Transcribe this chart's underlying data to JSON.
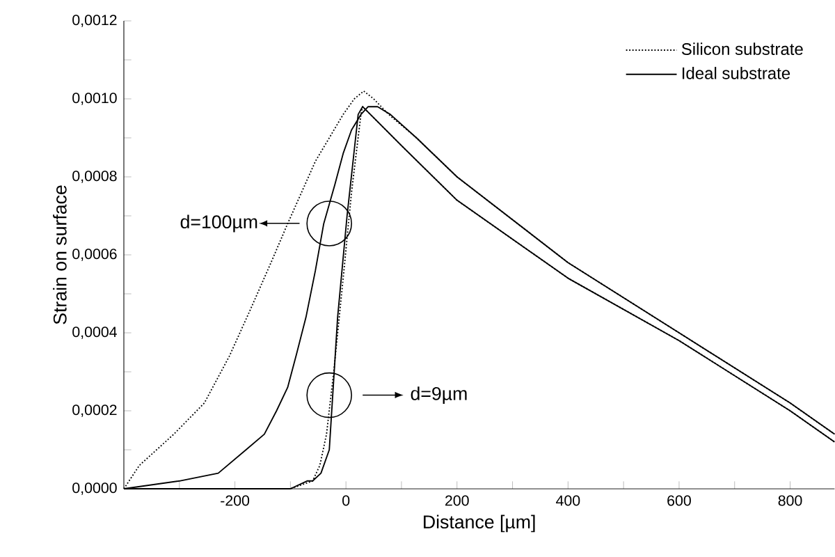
{
  "chart_data": {
    "type": "line",
    "xlabel": "Distance [µm]",
    "ylabel": "Strain on surface",
    "xlim": [
      -400,
      880
    ],
    "ylim": [
      0,
      0.0012
    ],
    "xticks": [
      {
        "value": -300,
        "label": null
      },
      -200,
      {
        "value": -100,
        "label": null
      },
      0,
      {
        "value": 100,
        "label": null
      },
      200,
      {
        "value": 300,
        "label": null
      },
      400,
      {
        "value": 500,
        "label": null
      },
      600,
      {
        "value": 700,
        "label": null
      },
      800
    ],
    "yticks": [
      {
        "value": 0,
        "label": "0,0000"
      },
      {
        "value": 0.0001,
        "label": null
      },
      {
        "value": 0.0002,
        "label": "0,0002"
      },
      {
        "value": 0.0003,
        "label": null
      },
      {
        "value": 0.0004,
        "label": "0,0004"
      },
      {
        "value": 0.0005,
        "label": null
      },
      {
        "value": 0.0006,
        "label": "0,0006"
      },
      {
        "value": 0.0007,
        "label": null
      },
      {
        "value": 0.0008,
        "label": "0,0008"
      },
      {
        "value": 0.0009,
        "label": null
      },
      {
        "value": 0.001,
        "label": "0,0010"
      },
      {
        "value": 0.0011,
        "label": null
      },
      {
        "value": 0.0012,
        "label": "0,0012"
      }
    ],
    "legend": "top right",
    "grid": false,
    "marker": "none",
    "series": [
      {
        "name": "Silicon substrate",
        "color": "#000000",
        "line_style": "dotted",
        "x": [
          -400,
          -372,
          -310,
          -255,
          -210,
          -172,
          -135,
          -105,
          -80,
          -55,
          -30,
          -5,
          15,
          32,
          50,
          77,
          127,
          200,
          400,
          600,
          800,
          880
        ],
        "values": [
          0,
          6e-05,
          0.00014,
          0.00022,
          0.00034,
          0.00046,
          0.00058,
          0.00068,
          0.00076,
          0.00084,
          0.0009,
          0.00096,
          0.001,
          0.00102,
          0.001,
          0.00096,
          0.0009,
          0.0008,
          0.00058,
          0.0004,
          0.00022,
          0.00014
        ]
      },
      {
        "name": "Ideal substrate",
        "color": "#000000",
        "line_style": "solid",
        "x": [
          -400,
          -300,
          -230,
          -180,
          -147,
          -125,
          -105,
          -90,
          -72,
          -55,
          -40,
          -20,
          -5,
          10,
          27,
          40,
          57,
          80,
          127,
          200,
          400,
          600,
          800,
          880
        ],
        "values": [
          0,
          2e-05,
          4e-05,
          0.0001,
          0.00014,
          0.0002,
          0.00026,
          0.00034,
          0.00044,
          0.00056,
          0.00068,
          0.00078,
          0.00086,
          0.00092,
          0.00096,
          0.00098,
          0.00098,
          0.00096,
          0.0009,
          0.0008,
          0.00058,
          0.0004,
          0.00022,
          0.00014
        ]
      },
      {
        "color": "#000000",
        "line_style": "dotted",
        "x": [
          -400,
          -220,
          -100,
          -60,
          -47,
          -35,
          -22,
          -5,
          10,
          27,
          30,
          100,
          200,
          400,
          600,
          800,
          880
        ],
        "values": [
          0,
          0,
          0,
          2e-05,
          6e-05,
          0.00014,
          0.0003,
          0.00054,
          0.00076,
          0.00096,
          0.00098,
          0.00088,
          0.00074,
          0.00054,
          0.00038,
          0.0002,
          0.00012
        ]
      },
      {
        "color": "#000000",
        "line_style": "solid",
        "x": [
          -400,
          -100,
          -70,
          -60,
          -45,
          -30,
          -15,
          2,
          22,
          30,
          100,
          200,
          400,
          600,
          800,
          880
        ],
        "values": [
          0,
          0,
          2e-05,
          2e-05,
          4e-05,
          0.0001,
          0.00044,
          0.0007,
          0.00096,
          0.00098,
          0.00088,
          0.00074,
          0.00054,
          0.00038,
          0.0002,
          0.00012
        ]
      }
    ],
    "annotations": [
      "d=100µm",
      "d=9µm"
    ]
  }
}
